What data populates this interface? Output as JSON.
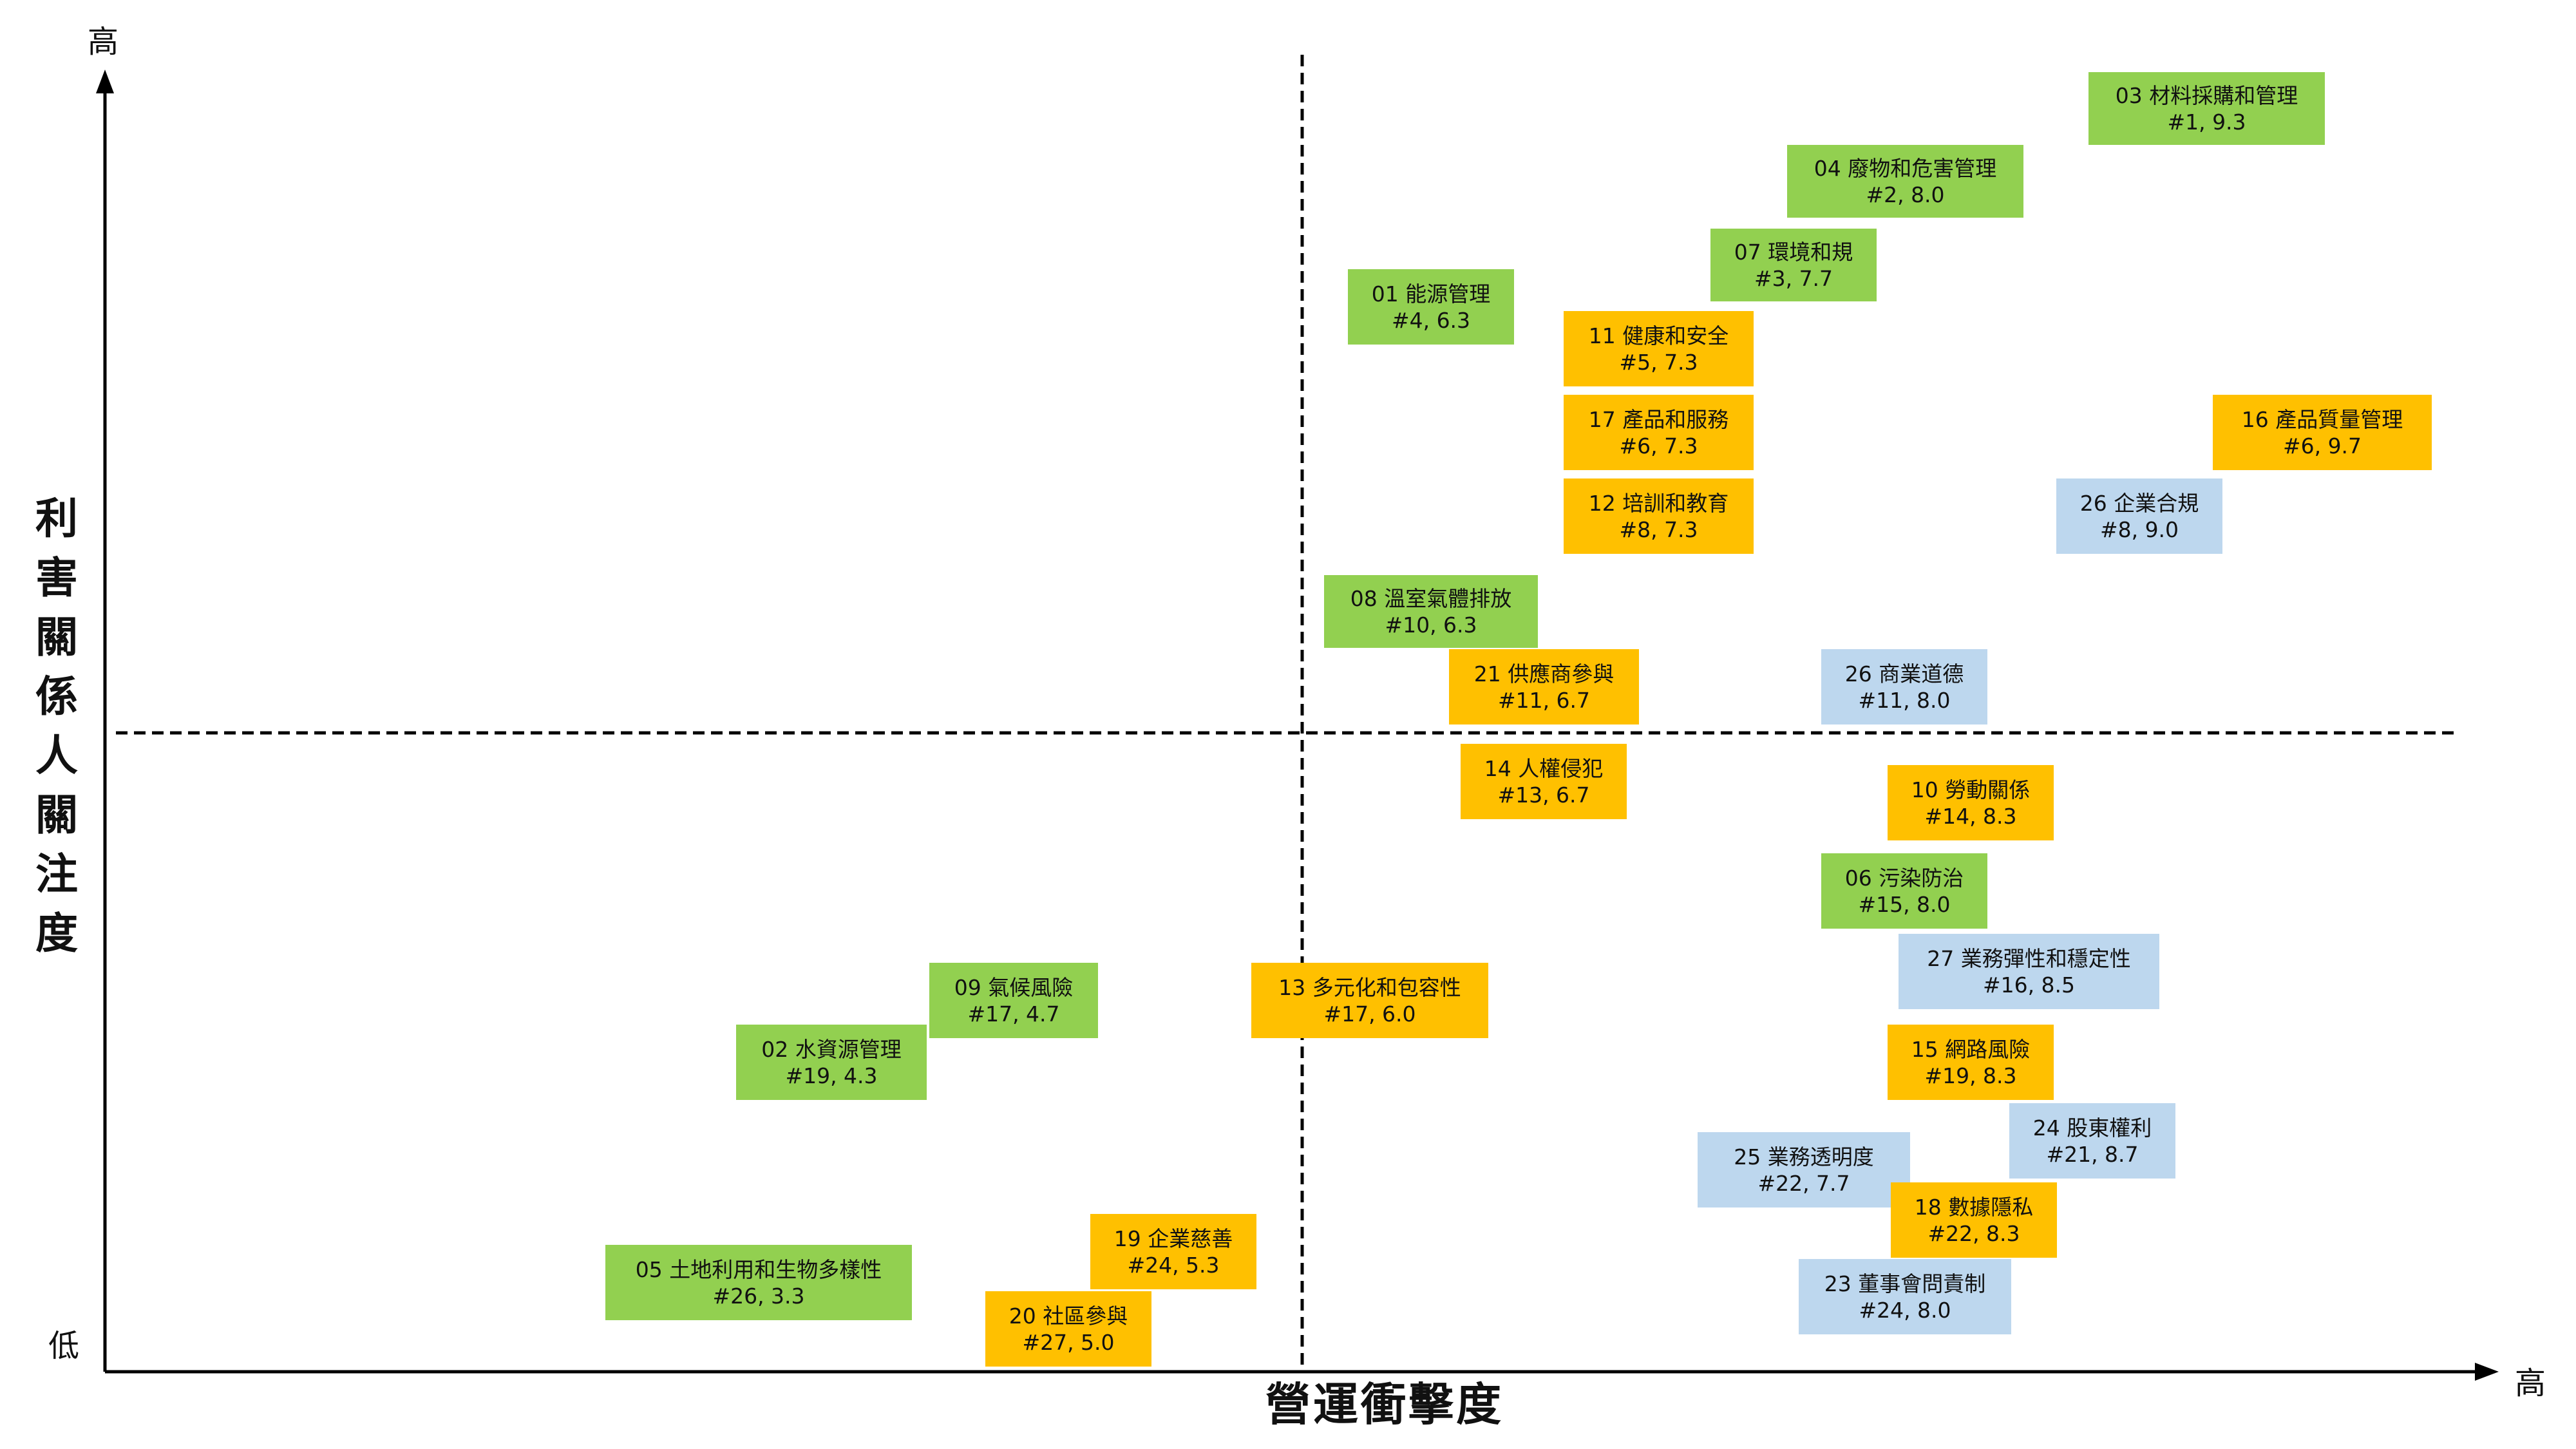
{
  "y_axis": {
    "title_chars": [
      "利",
      "害",
      "關",
      "係",
      "人",
      "關",
      "注",
      "度"
    ],
    "high_label": "高",
    "low_label": "低"
  },
  "x_axis": {
    "title": "營運衝擊度",
    "high_label": "高"
  },
  "colors": {
    "environment": "#92d050",
    "social": "#ffc000",
    "governance": "#bdd7ee",
    "axis": "#000000"
  },
  "topics": [
    {
      "title": "03 材料採購和管理",
      "sub": "#1, 9.3",
      "category": "environment"
    },
    {
      "title": "04 廢物和危害管理",
      "sub": "#2, 8.0",
      "category": "environment"
    },
    {
      "title": "07 環境和規",
      "sub": "#3, 7.7",
      "category": "environment"
    },
    {
      "title": "01 能源管理",
      "sub": "#4, 6.3",
      "category": "environment"
    },
    {
      "title": "11 健康和安全",
      "sub": "#5, 7.3",
      "category": "social"
    },
    {
      "title": "17 產品和服務",
      "sub": "#6, 7.3",
      "category": "social"
    },
    {
      "title": "16 產品質量管理",
      "sub": "#6, 9.7",
      "category": "social"
    },
    {
      "title": "12 培訓和教育",
      "sub": "#8, 7.3",
      "category": "social"
    },
    {
      "title": "26 企業合規",
      "sub": "#8, 9.0",
      "category": "governance"
    },
    {
      "title": "08 溫室氣體排放",
      "sub": "#10, 6.3",
      "category": "environment"
    },
    {
      "title": "21 供應商參與",
      "sub": "#11, 6.7",
      "category": "social"
    },
    {
      "title": "26 商業道德",
      "sub": "#11, 8.0",
      "category": "governance"
    },
    {
      "title": "14 人權侵犯",
      "sub": "#13, 6.7",
      "category": "social"
    },
    {
      "title": "10 勞動關係",
      "sub": "#14, 8.3",
      "category": "social"
    },
    {
      "title": "06 污染防治",
      "sub": "#15, 8.0",
      "category": "environment"
    },
    {
      "title": "27 業務彈性和穩定性",
      "sub": "#16, 8.5",
      "category": "governance"
    },
    {
      "title": "09 氣候風險",
      "sub": "#17, 4.7",
      "category": "environment"
    },
    {
      "title": "13 多元化和包容性",
      "sub": "#17, 6.0",
      "category": "social"
    },
    {
      "title": "02 水資源管理",
      "sub": "#19, 4.3",
      "category": "environment"
    },
    {
      "title": "15 網路風險",
      "sub": "#19, 8.3",
      "category": "social"
    },
    {
      "title": "24 股東權利",
      "sub": "#21, 8.7",
      "category": "governance"
    },
    {
      "title": "25 業務透明度",
      "sub": "#22, 7.7",
      "category": "governance"
    },
    {
      "title": "18 數據隱私",
      "sub": "#22, 8.3",
      "category": "social"
    },
    {
      "title": "19 企業慈善",
      "sub": "#24, 5.3",
      "category": "social"
    },
    {
      "title": "05 土地利用和生物多樣性",
      "sub": "#26, 3.3",
      "category": "environment"
    },
    {
      "title": "23 董事會問責制",
      "sub": "#24, 8.0",
      "category": "governance"
    },
    {
      "title": "20 社區參與",
      "sub": "#27, 5.0",
      "category": "social"
    }
  ]
}
